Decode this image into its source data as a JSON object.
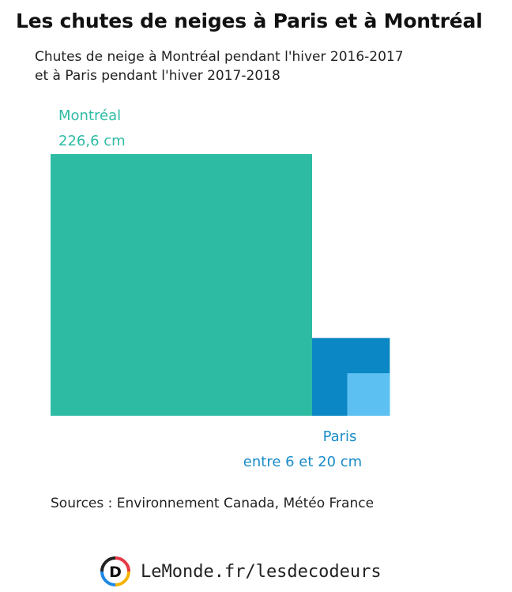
{
  "title": "Les chutes de neiges à Paris et à Montréal",
  "subtitle": {
    "line1": "Chutes de neige à Montréal pendant l'hiver 2016-2017",
    "line2": "et à Paris pendant l'hiver 2017-2018"
  },
  "chart_data": {
    "type": "area",
    "unit": "cm",
    "items": [
      {
        "name": "Montréal",
        "value_label": "226,6 cm",
        "value": 226.6,
        "color": "#2ebba4"
      },
      {
        "name": "Paris",
        "value_label": "entre 6 et 20 cm",
        "min": 6,
        "max": 20,
        "color_max": "#0a87c4",
        "color_min": "#5cc0f2"
      }
    ]
  },
  "sources": "Sources : Environnement Canada, Météo France",
  "footer": {
    "logo_letter": "D",
    "logo_icon": "le-monde-decodeurs-logo-icon",
    "brand": "LeMonde.fr/lesdecodeurs"
  }
}
